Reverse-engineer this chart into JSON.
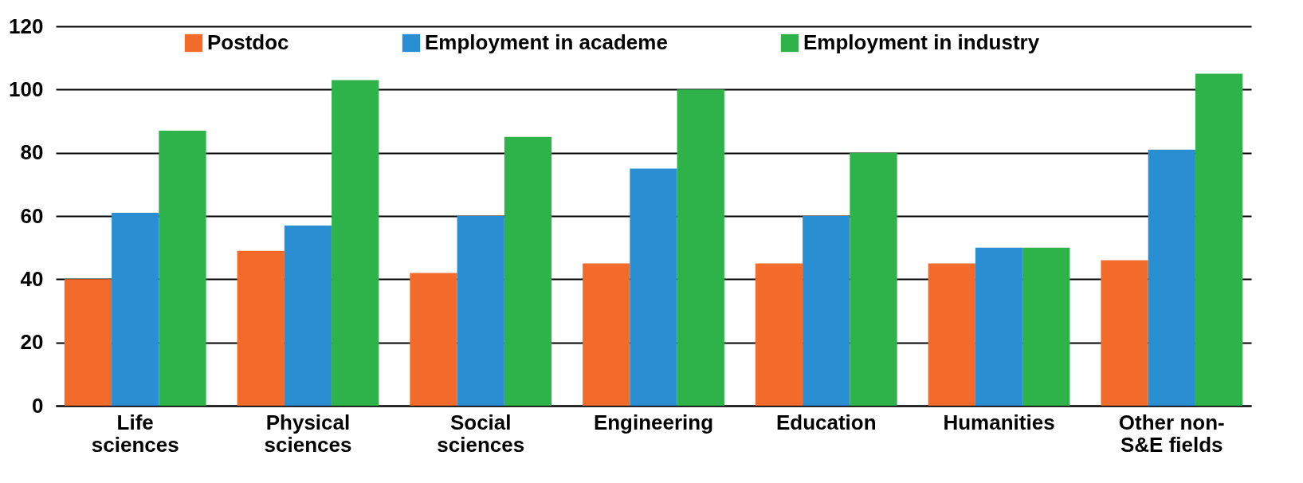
{
  "chart_data": {
    "type": "bar",
    "categories": [
      "Life sciences",
      "Physical sciences",
      "Social sciences",
      "Engineering",
      "Education",
      "Humanities",
      "Other non-S&E fields"
    ],
    "series": [
      {
        "name": "Postdoc",
        "color": "#f26b2a",
        "values": [
          40,
          49,
          42,
          45,
          45,
          45,
          46
        ]
      },
      {
        "name": "Employment in academe",
        "color": "#2a8fd2",
        "values": [
          61,
          57,
          60,
          75,
          60,
          50,
          81
        ]
      },
      {
        "name": "Employment in industry",
        "color": "#2db34a",
        "values": [
          87,
          103,
          85,
          100,
          80,
          50,
          105
        ]
      }
    ],
    "ylim": [
      0,
      120
    ],
    "yticks": [
      0,
      20,
      40,
      60,
      80,
      100,
      120
    ],
    "grid": "y",
    "legend": "top"
  }
}
